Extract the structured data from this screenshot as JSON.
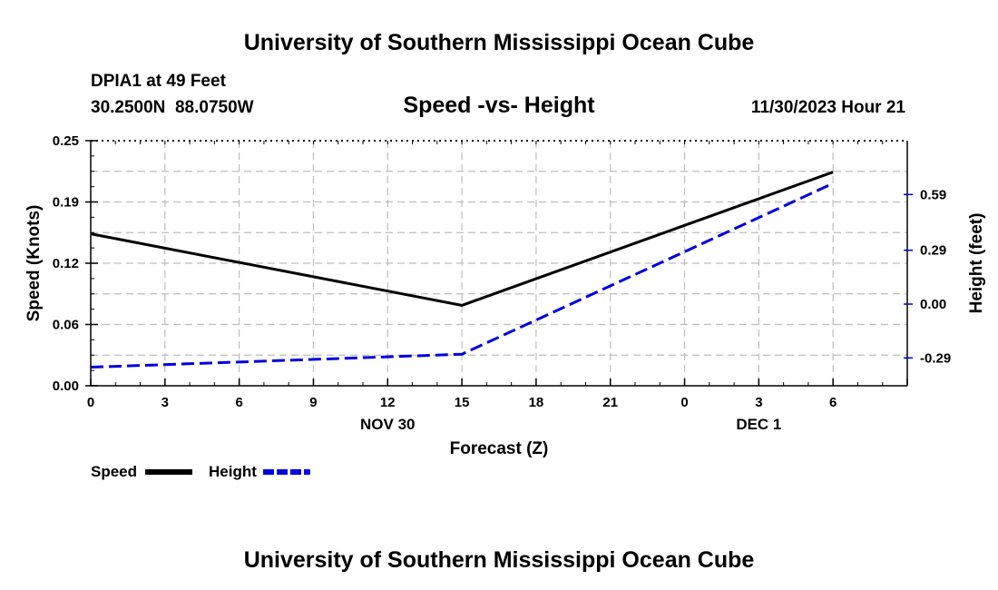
{
  "page": {
    "header_title": "University of Southern Mississippi Ocean Cube",
    "footer_title": "University of Southern Mississippi Ocean Cube",
    "station": "DPIA1 at 49 Feet",
    "coordinates": "30.2500N  88.0750W",
    "timestamp": "11/30/2023 Hour 21"
  },
  "colors": {
    "speed": "#000000",
    "height": "#0000dd",
    "grid": "#bdbdbd"
  },
  "chart_data": {
    "type": "line",
    "title": "Speed -vs- Height",
    "xlabel": "Forecast (Z)",
    "ylabel_left": "Speed (Knots)",
    "ylabel_right": "Height (feet)",
    "x": [
      0,
      15,
      33
    ],
    "x_range": [
      0,
      33
    ],
    "x_ticks": [
      0,
      3,
      6,
      9,
      12,
      15,
      18,
      21,
      24,
      27,
      30,
      33
    ],
    "x_tick_labels": [
      "0",
      "3",
      "6",
      "9",
      "12",
      "15",
      "18",
      "21",
      "0",
      "3",
      "6"
    ],
    "x_tick_label_positions": [
      0,
      3,
      6,
      9,
      12,
      15,
      18,
      21,
      24,
      27,
      30
    ],
    "date_labels": [
      {
        "x": 12,
        "label": "NOV 30"
      },
      {
        "x": 27,
        "label": "DEC 1"
      }
    ],
    "y_left_range": [
      0,
      0.25
    ],
    "y_left_ticks": [
      0,
      0.0625,
      0.125,
      0.1875,
      0.25
    ],
    "y_left_tick_labels": [
      "0.00",
      "0.06",
      "0.12",
      "0.19",
      "0.25"
    ],
    "y_right_range": [
      -0.44,
      0.88
    ],
    "y_right_ticks": [
      -0.29,
      0.0,
      0.29,
      0.59
    ],
    "y_right_tick_labels": [
      "-0.29",
      "0.00",
      "0.29",
      "0.59"
    ],
    "grid": true,
    "series": [
      {
        "name": "Speed",
        "axis": "left",
        "style": "solid",
        "x": [
          0,
          15,
          30
        ],
        "values": [
          0.155,
          0.082,
          0.218
        ]
      },
      {
        "name": "Height",
        "axis": "right",
        "style": "dashed",
        "x": [
          0,
          15,
          30
        ],
        "values": [
          -0.34,
          -0.27,
          0.65
        ]
      }
    ],
    "legend": {
      "placement": "bottom-left",
      "entries": [
        "Speed",
        "Height"
      ]
    }
  }
}
